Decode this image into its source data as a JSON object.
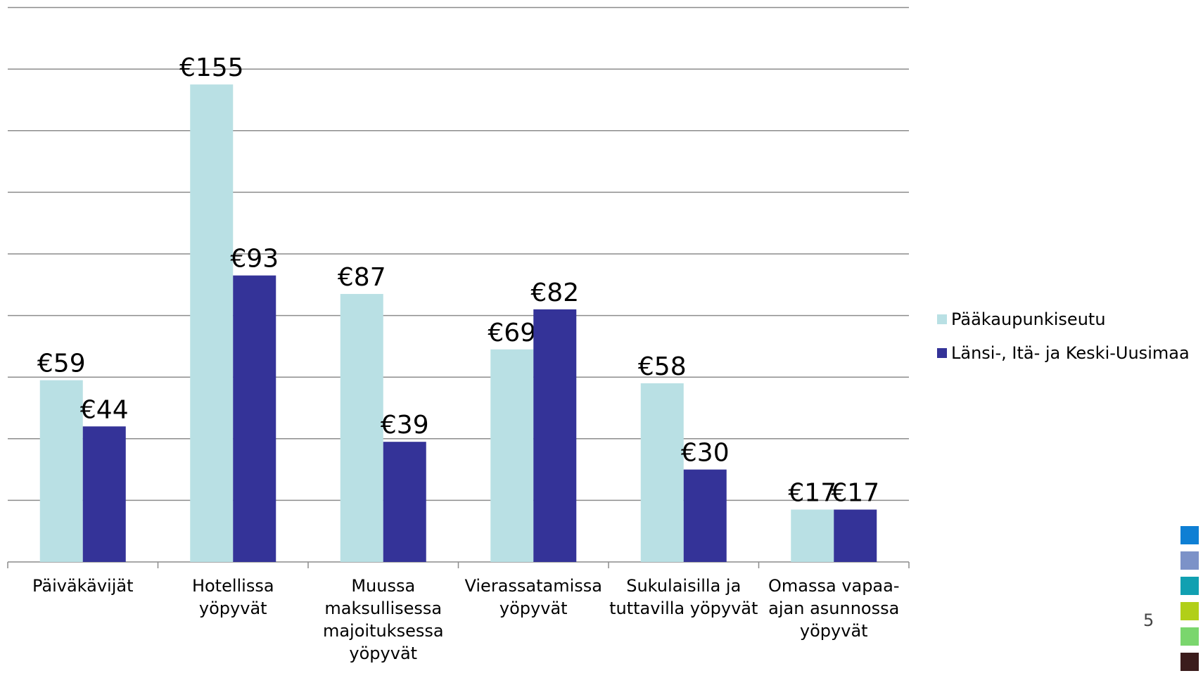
{
  "chart_data": {
    "type": "bar",
    "categories": [
      "Päiväkävijät",
      "Hotellissa yöpyvät",
      "Muussa maksullisessa majoituksessa yöpyvät",
      "Vierassatamissa yöpyvät",
      "Sukulaisilla ja tuttavilla yöpyvät",
      "Omassa vapaa-ajan asunnossa yöpyvät"
    ],
    "category_lines": [
      [
        "Päiväkävijät"
      ],
      [
        "Hotellissa yöpyvät"
      ],
      [
        "Muussa",
        "maksullisessa",
        "majoituksessa",
        "yöpyvät"
      ],
      [
        "Vierassatamissa",
        "yöpyvät"
      ],
      [
        "Sukulaisilla ja",
        "tuttavilla yöpyvät"
      ],
      [
        "Omassa vapaa-",
        "ajan asunnossa",
        "yöpyvät"
      ]
    ],
    "series": [
      {
        "name": "Pääkaupunkiseutu",
        "values": [
          59,
          155,
          87,
          69,
          58,
          17
        ],
        "labels": [
          "€59",
          "€155",
          "€87",
          "€69",
          "€58",
          "€17"
        ],
        "color": "#b9e0e4"
      },
      {
        "name": "Länsi-, Itä- ja Keski-Uusimaa",
        "values": [
          44,
          93,
          39,
          82,
          30,
          17
        ],
        "labels": [
          "€44",
          "€93",
          "€39",
          "€82",
          "€30",
          "€17"
        ],
        "color": "#343398"
      }
    ],
    "ylim": [
      0,
      180
    ],
    "y_gridline_step": 20,
    "y_tick_labels_shown": false,
    "grid": true,
    "legend_position": "right"
  },
  "page_number": "5",
  "decor_squares": [
    {
      "name": "blue",
      "color": "#0e7fd4"
    },
    {
      "name": "lavender",
      "color": "#7c92c8"
    },
    {
      "name": "teal",
      "color": "#11a0b1"
    },
    {
      "name": "lime",
      "color": "#b1cf18"
    },
    {
      "name": "green",
      "color": "#7ad66d"
    },
    {
      "name": "dark",
      "color": "#3b1c1c"
    }
  ]
}
